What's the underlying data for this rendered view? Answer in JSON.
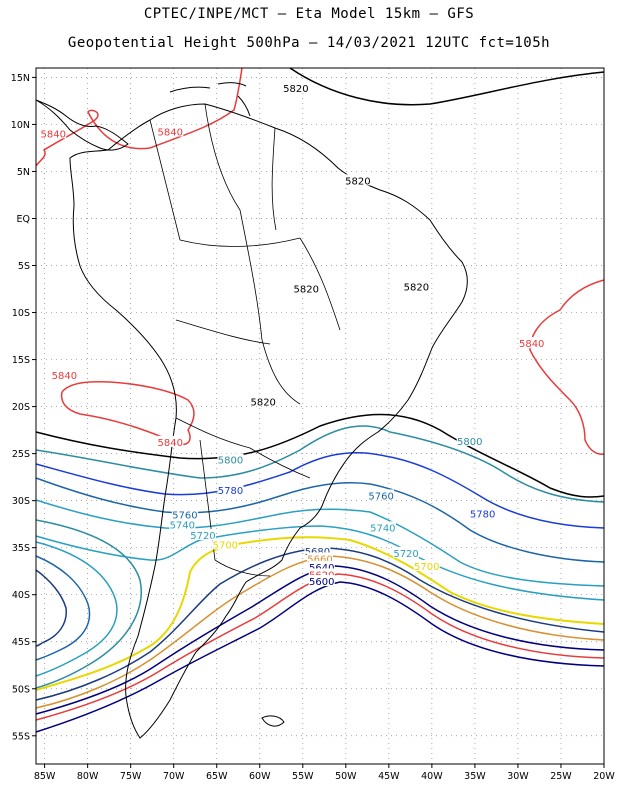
{
  "header": {
    "line1": "CPTEC/INPE/MCT –  Eta Model 15km – GFS",
    "line2": "Geopotential Height 500hPa – 14/03/2021 12UTC fct=105h"
  },
  "map": {
    "lon_range": [
      -86,
      -20
    ],
    "lat_range": [
      -58,
      16
    ],
    "lon_ticks": [
      {
        "value": -85,
        "label": "85W"
      },
      {
        "value": -80,
        "label": "80W"
      },
      {
        "value": -75,
        "label": "75W"
      },
      {
        "value": -70,
        "label": "70W"
      },
      {
        "value": -65,
        "label": "65W"
      },
      {
        "value": -60,
        "label": "60W"
      },
      {
        "value": -55,
        "label": "55W"
      },
      {
        "value": -50,
        "label": "50W"
      },
      {
        "value": -45,
        "label": "45W"
      },
      {
        "value": -40,
        "label": "40W"
      },
      {
        "value": -35,
        "label": "35W"
      },
      {
        "value": -30,
        "label": "30W"
      },
      {
        "value": -25,
        "label": "25W"
      },
      {
        "value": -20,
        "label": "20W"
      }
    ],
    "lat_ticks": [
      {
        "value": 15,
        "label": "15N"
      },
      {
        "value": 10,
        "label": "10N"
      },
      {
        "value": 5,
        "label": "5N"
      },
      {
        "value": 0,
        "label": "EQ"
      },
      {
        "value": -5,
        "label": "5S"
      },
      {
        "value": -10,
        "label": "10S"
      },
      {
        "value": -15,
        "label": "15S"
      },
      {
        "value": -20,
        "label": "20S"
      },
      {
        "value": -25,
        "label": "25S"
      },
      {
        "value": -30,
        "label": "30S"
      },
      {
        "value": -35,
        "label": "35S"
      },
      {
        "value": -40,
        "label": "40S"
      },
      {
        "value": -45,
        "label": "45S"
      },
      {
        "value": -50,
        "label": "50S"
      },
      {
        "value": -55,
        "label": "55S"
      }
    ],
    "grid": "dotted",
    "contour_labels": [
      {
        "text": "5820",
        "color": "#000000",
        "lon": -55.8,
        "lat": 13.8
      },
      {
        "text": "5820",
        "color": "#000000",
        "lon": -48.6,
        "lat": 4.0
      },
      {
        "text": "5820",
        "color": "#000000",
        "lon": -54.6,
        "lat": -7.5
      },
      {
        "text": "5820",
        "color": "#000000",
        "lon": -41.8,
        "lat": -7.3
      },
      {
        "text": "5820",
        "color": "#000000",
        "lon": -59.6,
        "lat": -19.5
      },
      {
        "text": "5840",
        "color": "#e83c3c",
        "lon": -84.0,
        "lat": 9.0
      },
      {
        "text": "5840",
        "color": "#e83c3c",
        "lon": -70.4,
        "lat": 9.2
      },
      {
        "text": "5840",
        "color": "#e83c3c",
        "lon": -82.7,
        "lat": -16.7
      },
      {
        "text": "5840",
        "color": "#e83c3c",
        "lon": -70.4,
        "lat": -23.8
      },
      {
        "text": "5840",
        "color": "#e83c3c",
        "lon": -28.4,
        "lat": -13.3
      },
      {
        "text": "5800",
        "color": "#2c8ca0",
        "lon": -63.4,
        "lat": -25.7
      },
      {
        "text": "5800",
        "color": "#2c8ca0",
        "lon": -35.6,
        "lat": -23.7
      },
      {
        "text": "5780",
        "color": "#1a3cd8",
        "lon": -63.4,
        "lat": -28.9
      },
      {
        "text": "5780",
        "color": "#1a3cd8",
        "lon": -34.1,
        "lat": -31.4
      },
      {
        "text": "5760",
        "color": "#1c66a8",
        "lon": -68.7,
        "lat": -31.5
      },
      {
        "text": "5760",
        "color": "#1c66a8",
        "lon": -45.9,
        "lat": -29.5
      },
      {
        "text": "5740",
        "color": "#2aa0c0",
        "lon": -69.0,
        "lat": -32.6
      },
      {
        "text": "5740",
        "color": "#2aa0c0",
        "lon": -45.7,
        "lat": -32.9
      },
      {
        "text": "5720",
        "color": "#2aa0c0",
        "lon": -66.6,
        "lat": -33.7
      },
      {
        "text": "5720",
        "color": "#2aa0c0",
        "lon": -43.0,
        "lat": -35.6
      },
      {
        "text": "5700",
        "color": "#e8d800",
        "lon": -64.0,
        "lat": -34.7
      },
      {
        "text": "5700",
        "color": "#e8d800",
        "lon": -40.6,
        "lat": -37.0
      },
      {
        "text": "5680",
        "color": "#1c3c80",
        "lon": -53.3,
        "lat": -35.4
      },
      {
        "text": "5660",
        "color": "#d89030",
        "lon": -53.0,
        "lat": -36.2
      },
      {
        "text": "5640",
        "color": "#000080",
        "lon": -52.8,
        "lat": -37.1
      },
      {
        "text": "5620",
        "color": "#e83c3c",
        "lon": -52.8,
        "lat": -37.9
      },
      {
        "text": "5600",
        "color": "#000080",
        "lon": -52.8,
        "lat": -38.6
      }
    ]
  }
}
